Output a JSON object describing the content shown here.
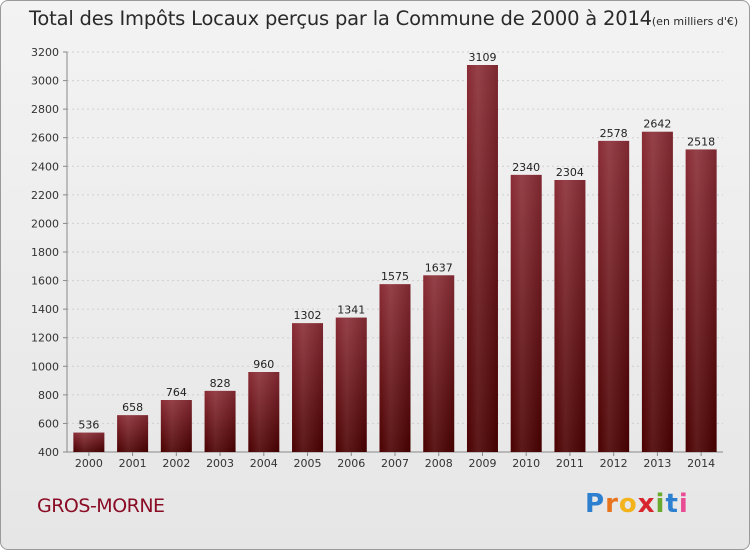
{
  "chart_data": {
    "type": "bar",
    "title": "Total des Impôts Locaux perçus par la Commune de 2000 à 2014",
    "unit_label": "(en milliers d'€)",
    "categories": [
      "2000",
      "2001",
      "2002",
      "2003",
      "2004",
      "2005",
      "2006",
      "2007",
      "2008",
      "2009",
      "2010",
      "2011",
      "2012",
      "2013",
      "2014"
    ],
    "values": [
      536,
      658,
      764,
      828,
      960,
      1302,
      1341,
      1575,
      1637,
      3109,
      2340,
      2304,
      2578,
      2642,
      2518
    ],
    "ylim": [
      400,
      3200
    ],
    "yticks": [
      400,
      600,
      800,
      1000,
      1200,
      1400,
      1600,
      1800,
      2000,
      2200,
      2400,
      2600,
      2800,
      3000,
      3200
    ],
    "xlabel": "",
    "ylabel": "",
    "grid": true,
    "bar_color_top": "#8a2c35",
    "bar_color_bottom": "#4a0000"
  },
  "commune": "GROS-MORNE",
  "logo": {
    "letters": [
      "P",
      "r",
      "o",
      "x",
      "i",
      "t",
      "i"
    ]
  }
}
